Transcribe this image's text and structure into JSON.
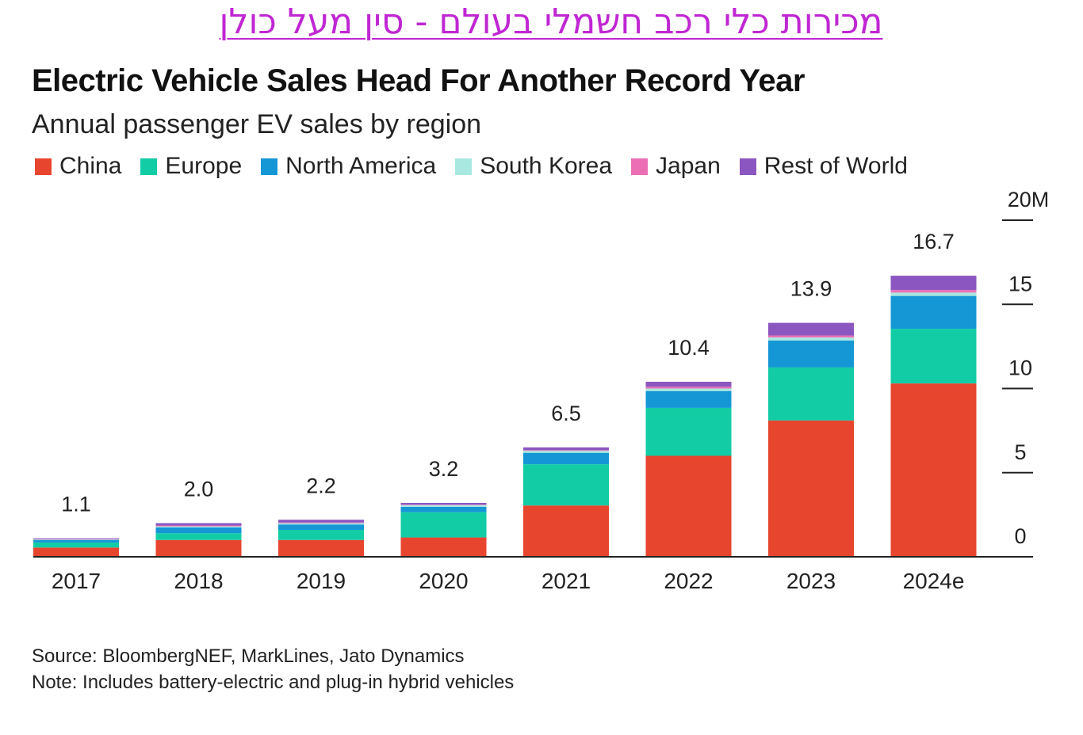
{
  "hebrew_title": "מכירות כלי רכב חשמלי בעולם - סין מעל כולן",
  "chart_data": {
    "type": "bar",
    "stacked": true,
    "title": "Electric Vehicle Sales Head For Another Record Year",
    "subtitle": "Annual passenger EV sales by region",
    "categories": [
      "2017",
      "2018",
      "2019",
      "2020",
      "2021",
      "2022",
      "2023",
      "2024e"
    ],
    "totals": [
      "1.1",
      "2.0",
      "2.2",
      "3.2",
      "6.5",
      "10.4",
      "13.9",
      "16.7"
    ],
    "series": [
      {
        "name": "China",
        "color": "#e8452f",
        "values": [
          0.55,
          1.0,
          1.0,
          1.15,
          3.05,
          6.0,
          8.1,
          10.3
        ]
      },
      {
        "name": "Europe",
        "color": "#12cca6",
        "values": [
          0.3,
          0.4,
          0.6,
          1.5,
          2.45,
          2.85,
          3.15,
          3.25
        ]
      },
      {
        "name": "North America",
        "color": "#1597d6",
        "values": [
          0.15,
          0.35,
          0.32,
          0.32,
          0.68,
          1.0,
          1.6,
          1.95
        ]
      },
      {
        "name": "South Korea",
        "color": "#a8e8e0",
        "values": [
          0.03,
          0.06,
          0.08,
          0.1,
          0.12,
          0.15,
          0.18,
          0.2
        ]
      },
      {
        "name": "Japan",
        "color": "#ec6fb6",
        "values": [
          0.02,
          0.05,
          0.04,
          0.03,
          0.04,
          0.1,
          0.12,
          0.15
        ]
      },
      {
        "name": "Rest of World",
        "color": "#8c56c0",
        "values": [
          0.05,
          0.14,
          0.16,
          0.1,
          0.16,
          0.3,
          0.75,
          0.85
        ]
      }
    ],
    "y_ticks": [
      {
        "value": 0,
        "label": "0"
      },
      {
        "value": 5,
        "label": "5"
      },
      {
        "value": 10,
        "label": "10"
      },
      {
        "value": 15,
        "label": "15"
      },
      {
        "value": 20,
        "label": "20M"
      }
    ],
    "ylim": [
      0,
      20
    ],
    "y_axis_position": "right",
    "legend_position": "top-left",
    "grid": false
  },
  "source_line": "Source: BloombergNEF, MarkLines, Jato Dynamics",
  "note_line": "Note: Includes battery-electric and plug-in hybrid vehicles"
}
